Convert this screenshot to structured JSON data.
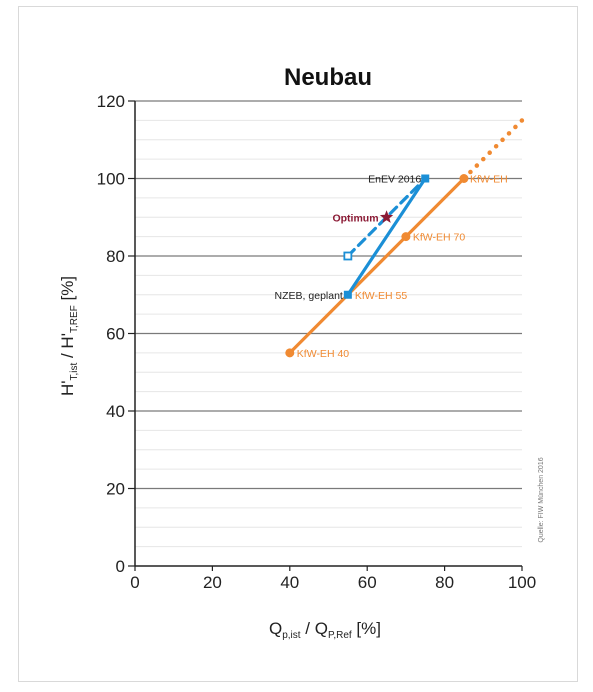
{
  "chart_data": {
    "type": "line",
    "title": "Neubau",
    "xlabel": {
      "main": "Q",
      "sub1": "p,ist",
      "mid": " / Q",
      "sub2": "P,Ref",
      "tail": " [%]"
    },
    "ylabel": {
      "main": "H'",
      "sub1": "T,ist",
      "mid": " / H'",
      "sub2": "T,REF",
      "tail": " [%]"
    },
    "xlim": [
      0,
      100
    ],
    "ylim": [
      0,
      120
    ],
    "xticks": [
      "0",
      "20",
      "40",
      "60",
      "80",
      "100"
    ],
    "yticks": [
      "0",
      "20",
      "40",
      "60",
      "80",
      "100",
      "120"
    ],
    "grid": "horizontal",
    "colors": {
      "blue": "#1b8fd6",
      "orange": "#f08a32",
      "optimum": "#8b1a35",
      "grid": "#7a7a7a",
      "minor_grid": "#e6e6e6"
    },
    "series": [
      {
        "id": "kfw",
        "color": "orange",
        "style": "solid",
        "points": [
          {
            "x": 40,
            "y": 55
          },
          {
            "x": 55,
            "y": 70
          },
          {
            "x": 70,
            "y": 85
          },
          {
            "x": 85,
            "y": 100
          }
        ]
      },
      {
        "id": "kfw-ext",
        "color": "orange",
        "style": "dotted",
        "points": [
          {
            "x": 85,
            "y": 100
          },
          {
            "x": 100,
            "y": 115
          }
        ]
      },
      {
        "id": "enev",
        "color": "blue",
        "style": "solid",
        "points": [
          {
            "x": 55,
            "y": 70
          },
          {
            "x": 75,
            "y": 100
          }
        ]
      },
      {
        "id": "enev-dashed",
        "color": "blue",
        "style": "dashed",
        "points": [
          {
            "x": 55,
            "y": 80
          },
          {
            "x": 75,
            "y": 100
          }
        ]
      }
    ],
    "markers": [
      {
        "x": 40,
        "y": 55,
        "color": "orange",
        "shape": "dot"
      },
      {
        "x": 70,
        "y": 85,
        "color": "orange",
        "shape": "dot"
      },
      {
        "x": 85,
        "y": 100,
        "color": "orange",
        "shape": "dot"
      },
      {
        "x": 55,
        "y": 70,
        "color": "blue",
        "shape": "square"
      },
      {
        "x": 75,
        "y": 100,
        "color": "blue",
        "shape": "square"
      },
      {
        "x": 55,
        "y": 80,
        "color": "blue",
        "shape": "open-square"
      },
      {
        "x": 65,
        "y": 90,
        "color": "optimum",
        "shape": "star"
      }
    ],
    "annotations": [
      {
        "text": "EnEV 2016",
        "x": 75,
        "y": 100,
        "color": "#222222",
        "anchor": "end",
        "dx": -4,
        "dy": 4
      },
      {
        "text": "KfW-EH",
        "x": 85,
        "y": 100,
        "color": "#f08a32",
        "anchor": "start",
        "dx": 6,
        "dy": 4
      },
      {
        "text": "Optimum",
        "x": 65,
        "y": 90,
        "color": "#8b1a35",
        "anchor": "end",
        "dx": -8,
        "dy": 4,
        "bold": true
      },
      {
        "text": "KfW-EH 70",
        "x": 70,
        "y": 85,
        "color": "#f08a32",
        "anchor": "start",
        "dx": 7,
        "dy": 4
      },
      {
        "text": "NZEB, geplant",
        "x": 55,
        "y": 70,
        "color": "#222222",
        "anchor": "end",
        "dx": -5,
        "dy": 4
      },
      {
        "text": "KfW-EH 55",
        "x": 55,
        "y": 70,
        "color": "#f08a32",
        "anchor": "start",
        "dx": 7,
        "dy": 4
      },
      {
        "text": "KfW-EH 40",
        "x": 40,
        "y": 55,
        "color": "#f08a32",
        "anchor": "start",
        "dx": 7,
        "dy": 4
      }
    ],
    "source": "Quelle: FIW München 2016"
  }
}
